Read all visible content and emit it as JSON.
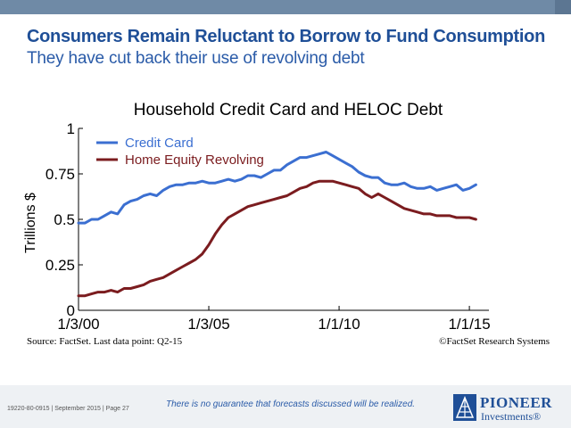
{
  "header": {
    "headline": "Consumers Remain Reluctant to Borrow to Fund Consumption",
    "subhead": "They have cut back their use of revolving debt"
  },
  "footer": {
    "source": "Source: FactSet. Last data point: Q2-15",
    "copyright": "©FactSet Research Systems",
    "disclaimer": "There is no guarantee that forecasts discussed will be realized.",
    "page_info": "19220-80-0915 | September 2015 | Page 27",
    "logo_line1": "PIONEER",
    "logo_line2": "Investments®"
  },
  "colors": {
    "credit_card": "#3b6fd1",
    "home_equity": "#7b1c1f",
    "brand": "#1f4f97"
  },
  "chart_data": {
    "type": "line",
    "title": "Household Credit Card and HELOC Debt",
    "xlabel": "",
    "ylabel": "Trillions $",
    "ylim": [
      0,
      1
    ],
    "yticks": [
      0,
      0.25,
      0.5,
      0.75,
      1
    ],
    "ytick_labels": [
      "0",
      "0.25",
      "0.5",
      "0.75",
      "1"
    ],
    "xlim": [
      2000.0,
      2015.75
    ],
    "xticks": [
      2000.0,
      2005.0,
      2010.0,
      2015.0
    ],
    "xtick_labels": [
      "1/3/00",
      "1/3/05",
      "1/1/10",
      "1/1/15"
    ],
    "grid": false,
    "legend_position": "top-left",
    "series": [
      {
        "name": "Credit Card",
        "x": [
          2000.0,
          2000.25,
          2000.5,
          2000.75,
          2001.0,
          2001.25,
          2001.5,
          2001.75,
          2002.0,
          2002.25,
          2002.5,
          2002.75,
          2003.0,
          2003.25,
          2003.5,
          2003.75,
          2004.0,
          2004.25,
          2004.5,
          2004.75,
          2005.0,
          2005.25,
          2005.5,
          2005.75,
          2006.0,
          2006.25,
          2006.5,
          2006.75,
          2007.0,
          2007.25,
          2007.5,
          2007.75,
          2008.0,
          2008.25,
          2008.5,
          2008.75,
          2009.0,
          2009.25,
          2009.5,
          2009.75,
          2010.0,
          2010.25,
          2010.5,
          2010.75,
          2011.0,
          2011.25,
          2011.5,
          2011.75,
          2012.0,
          2012.25,
          2012.5,
          2012.75,
          2013.0,
          2013.25,
          2013.5,
          2013.75,
          2014.0,
          2014.25,
          2014.5,
          2014.75,
          2015.0,
          2015.25
        ],
        "y": [
          0.48,
          0.48,
          0.5,
          0.5,
          0.52,
          0.54,
          0.53,
          0.58,
          0.6,
          0.61,
          0.63,
          0.64,
          0.63,
          0.66,
          0.68,
          0.69,
          0.69,
          0.7,
          0.7,
          0.71,
          0.7,
          0.7,
          0.71,
          0.72,
          0.71,
          0.72,
          0.74,
          0.74,
          0.73,
          0.75,
          0.77,
          0.77,
          0.8,
          0.82,
          0.84,
          0.84,
          0.85,
          0.86,
          0.87,
          0.85,
          0.83,
          0.81,
          0.79,
          0.76,
          0.74,
          0.73,
          0.73,
          0.7,
          0.69,
          0.69,
          0.7,
          0.68,
          0.67,
          0.67,
          0.68,
          0.66,
          0.67,
          0.68,
          0.69,
          0.66,
          0.67,
          0.69
        ]
      },
      {
        "name": "Home Equity Revolving",
        "x": [
          2000.0,
          2000.25,
          2000.5,
          2000.75,
          2001.0,
          2001.25,
          2001.5,
          2001.75,
          2002.0,
          2002.25,
          2002.5,
          2002.75,
          2003.0,
          2003.25,
          2003.5,
          2003.75,
          2004.0,
          2004.25,
          2004.5,
          2004.75,
          2005.0,
          2005.25,
          2005.5,
          2005.75,
          2006.0,
          2006.25,
          2006.5,
          2006.75,
          2007.0,
          2007.25,
          2007.5,
          2007.75,
          2008.0,
          2008.25,
          2008.5,
          2008.75,
          2009.0,
          2009.25,
          2009.5,
          2009.75,
          2010.0,
          2010.25,
          2010.5,
          2010.75,
          2011.0,
          2011.25,
          2011.5,
          2011.75,
          2012.0,
          2012.25,
          2012.5,
          2012.75,
          2013.0,
          2013.25,
          2013.5,
          2013.75,
          2014.0,
          2014.25,
          2014.5,
          2014.75,
          2015.0,
          2015.25
        ],
        "y": [
          0.08,
          0.08,
          0.09,
          0.1,
          0.1,
          0.11,
          0.1,
          0.12,
          0.12,
          0.13,
          0.14,
          0.16,
          0.17,
          0.18,
          0.2,
          0.22,
          0.24,
          0.26,
          0.28,
          0.31,
          0.36,
          0.42,
          0.47,
          0.51,
          0.53,
          0.55,
          0.57,
          0.58,
          0.59,
          0.6,
          0.61,
          0.62,
          0.63,
          0.65,
          0.67,
          0.68,
          0.7,
          0.71,
          0.71,
          0.71,
          0.7,
          0.69,
          0.68,
          0.67,
          0.64,
          0.62,
          0.64,
          0.62,
          0.6,
          0.58,
          0.56,
          0.55,
          0.54,
          0.53,
          0.53,
          0.52,
          0.52,
          0.52,
          0.51,
          0.51,
          0.51,
          0.5
        ]
      }
    ]
  }
}
